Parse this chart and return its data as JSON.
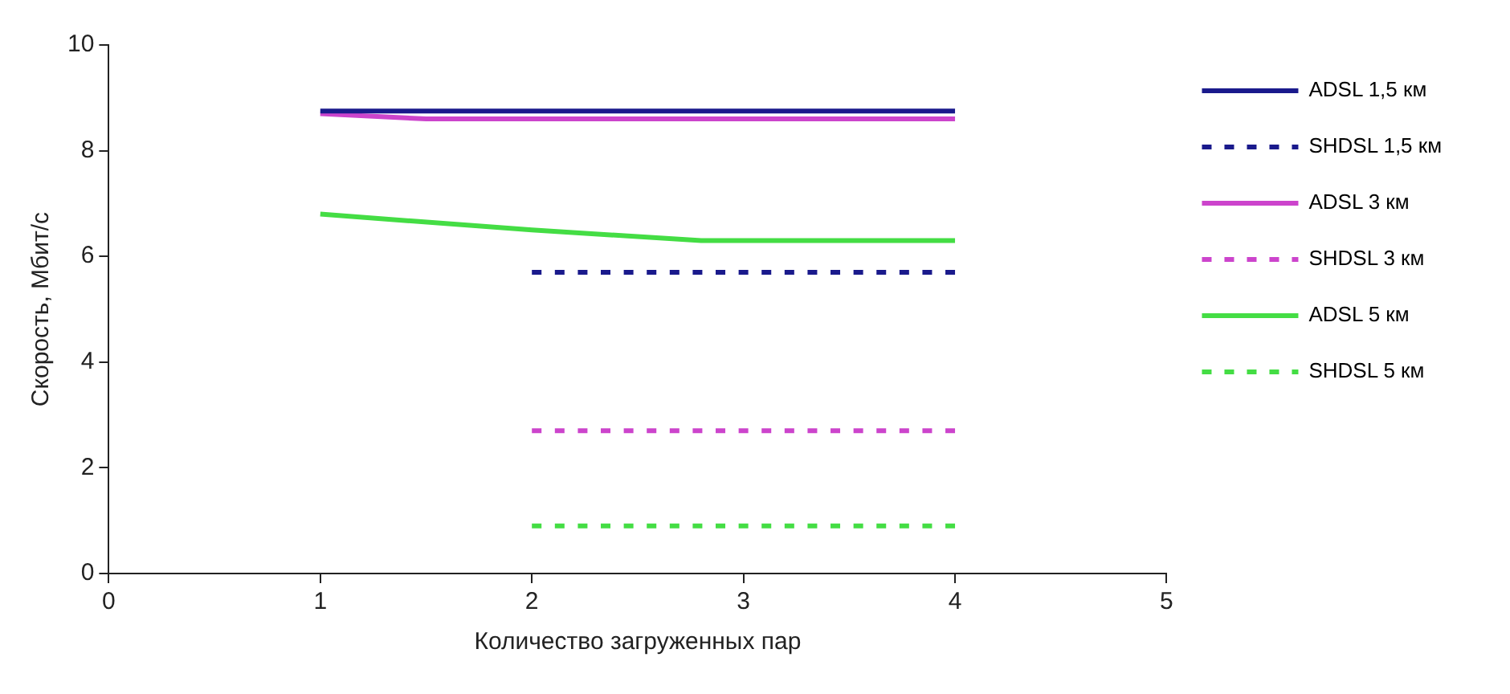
{
  "chart_data": {
    "type": "line",
    "xlabel": "Количество загруженных пар",
    "ylabel": "Скорость, Мбит/с",
    "xlim": [
      0,
      5
    ],
    "xticks": [
      0,
      1,
      2,
      3,
      4,
      5
    ],
    "ylim": [
      0,
      10
    ],
    "yticks": [
      0,
      2,
      4,
      6,
      8,
      10
    ],
    "grid": false,
    "legend": "right",
    "marker": "none",
    "series": [
      {
        "name": "ADSL 1,5 км",
        "color": "#1a1a8c",
        "x": [
          1,
          4
        ],
        "values": [
          8.75,
          8.75
        ],
        "line_style": "solid"
      },
      {
        "name": "SHDSL 1,5 км",
        "color": "#1a1a8c",
        "x": [
          2,
          4
        ],
        "values": [
          5.7,
          5.7
        ],
        "line_style": "dashed"
      },
      {
        "name": "ADSL 3 км",
        "color": "#cc44cc",
        "x": [
          1,
          1.5,
          4
        ],
        "values": [
          8.7,
          8.6,
          8.6
        ],
        "line_style": "solid"
      },
      {
        "name": "SHDSL 3 км",
        "color": "#cc44cc",
        "x": [
          2,
          4
        ],
        "values": [
          2.7,
          2.7
        ],
        "line_style": "dashed"
      },
      {
        "name": "ADSL 5 км",
        "color": "#44dd44",
        "x": [
          1,
          2,
          2.8,
          4
        ],
        "values": [
          6.8,
          6.5,
          6.3,
          6.3
        ],
        "line_style": "solid"
      },
      {
        "name": "SHDSL 5 км",
        "color": "#44dd44",
        "x": [
          2,
          4
        ],
        "values": [
          0.9,
          0.9
        ],
        "line_style": "dashed"
      }
    ]
  }
}
